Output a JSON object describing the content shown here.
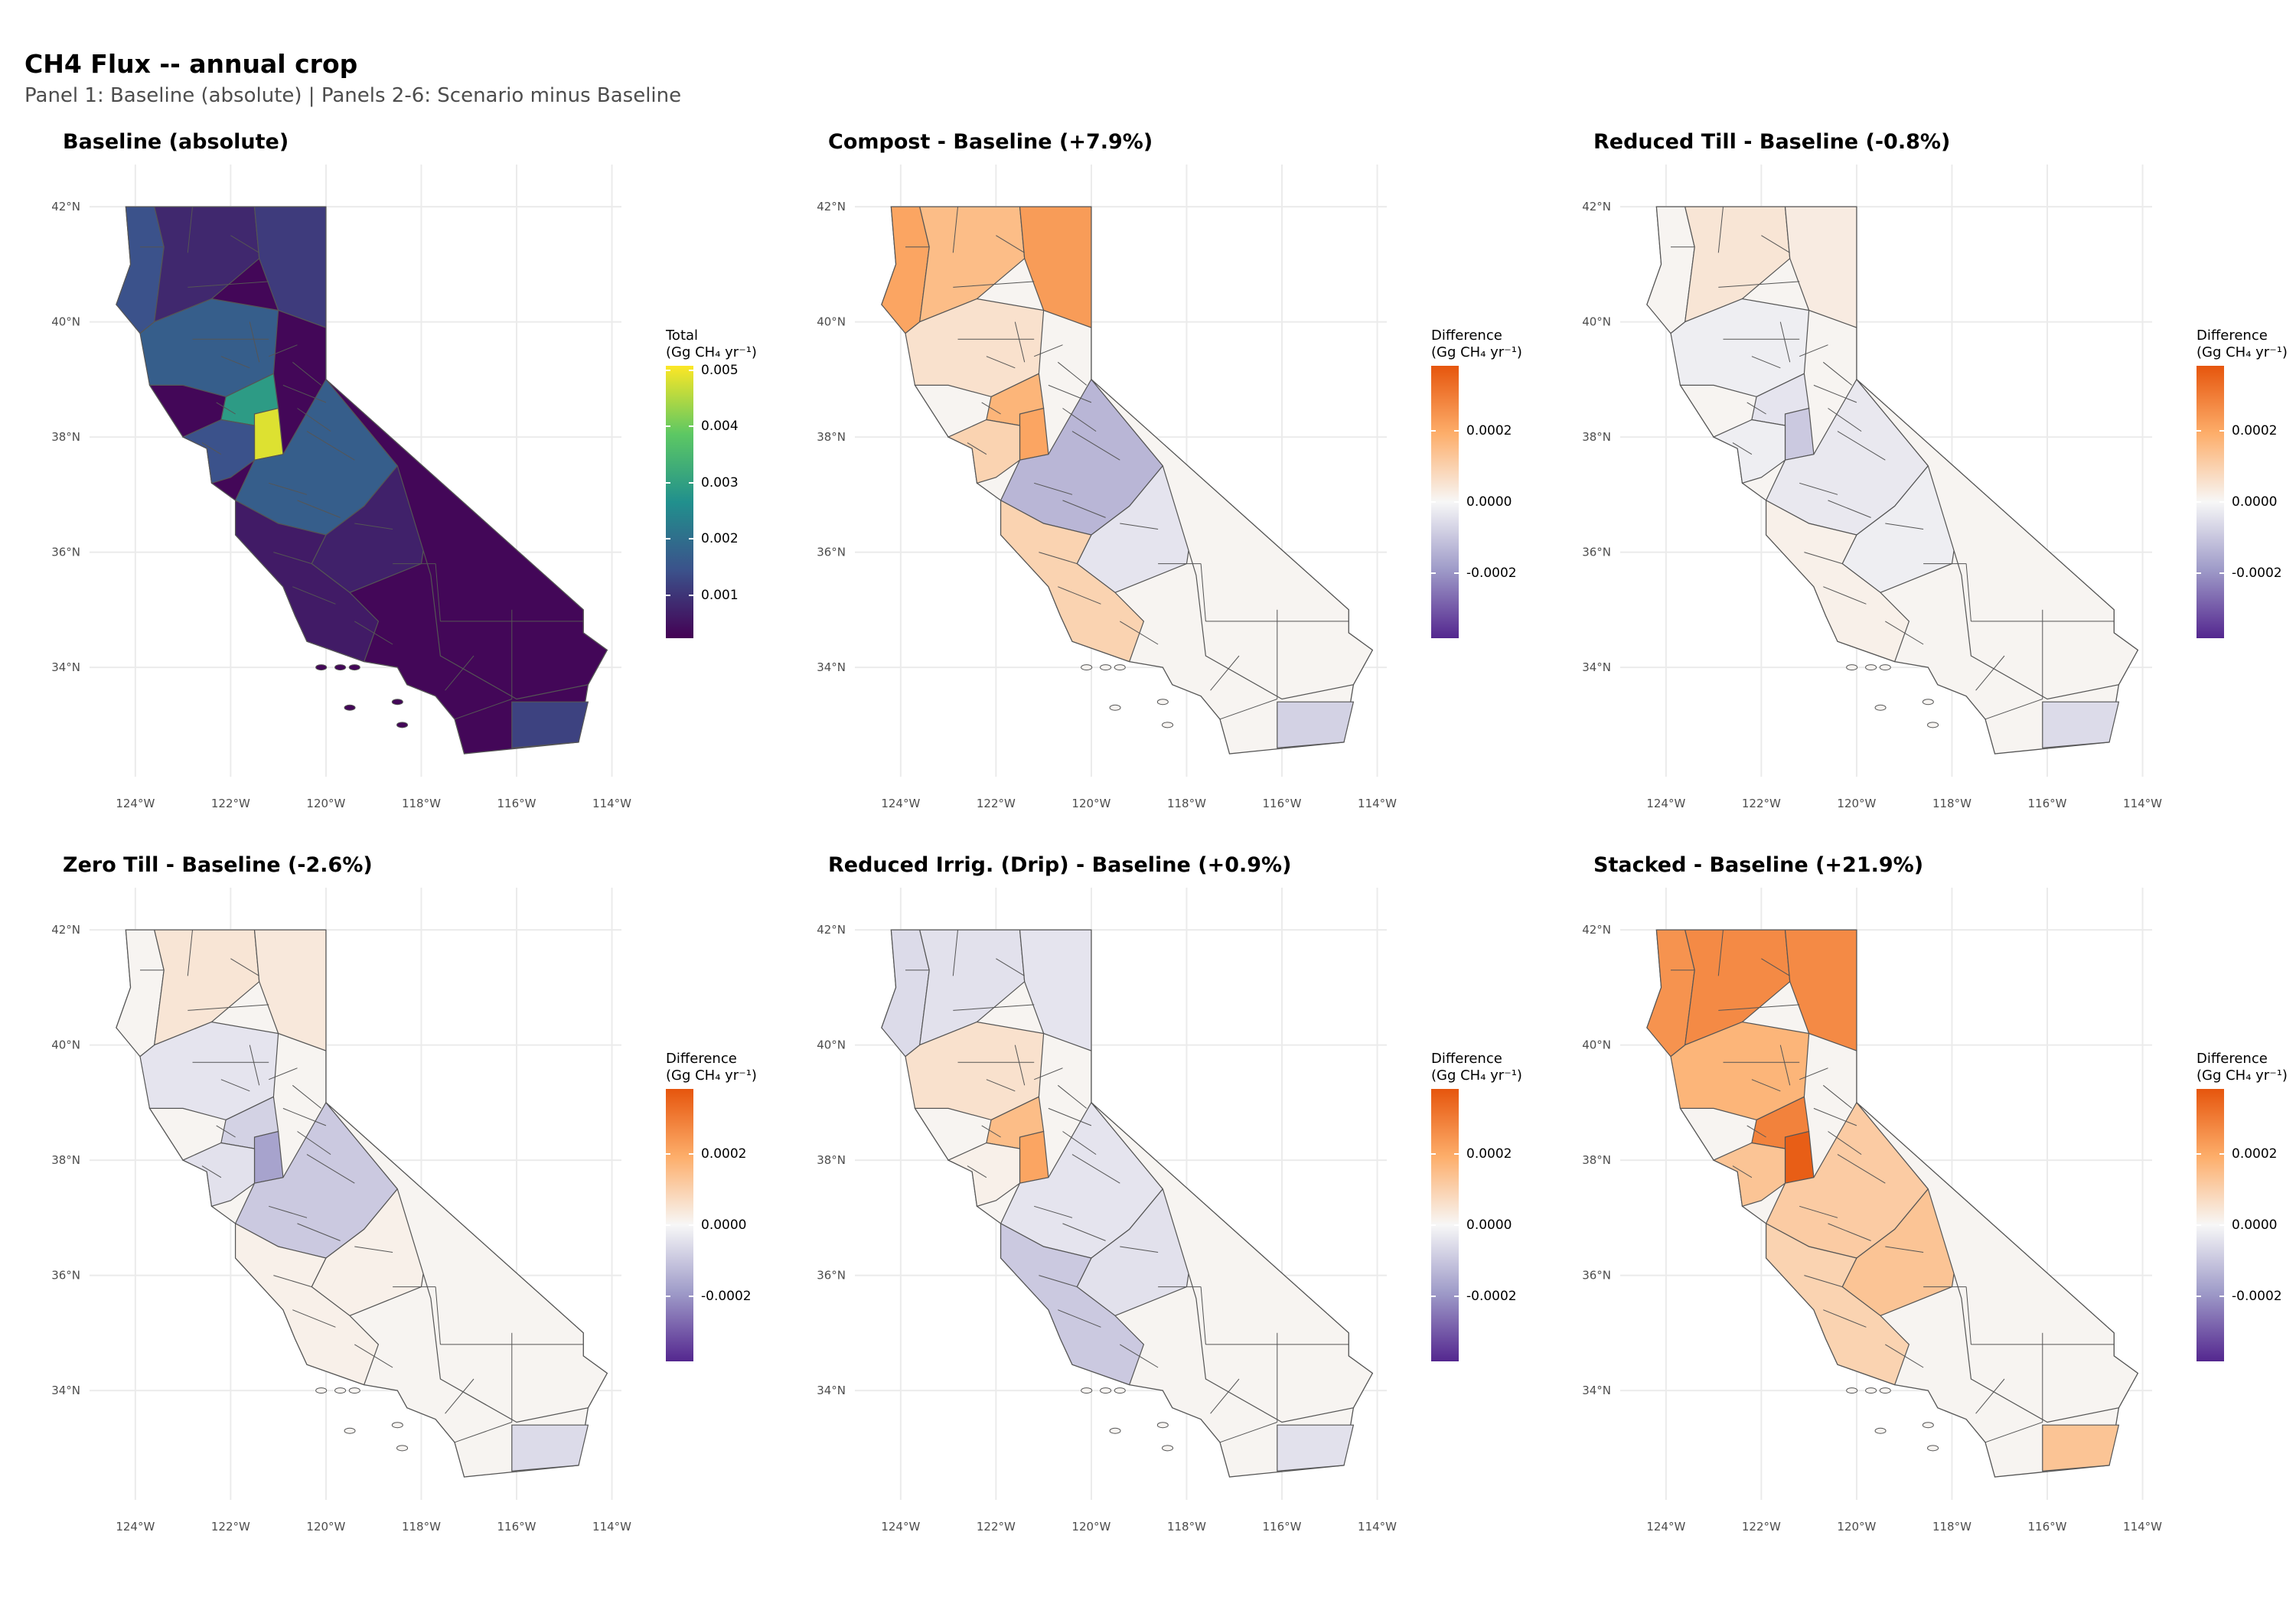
{
  "figure": {
    "title": "CH4 Flux -- annual crop",
    "subtitle": "Panel 1: Baseline (absolute) | Panels 2-6: Scenario minus Baseline"
  },
  "axes": {
    "lon_ticks": [
      "124°W",
      "122°W",
      "120°W",
      "118°W",
      "116°W",
      "114°W"
    ],
    "lat_ticks": [
      "42°N",
      "40°N",
      "38°N",
      "36°N",
      "34°N"
    ]
  },
  "colors": {
    "viridis": [
      "#440154",
      "#3b528b",
      "#21908d",
      "#5dc863",
      "#fde725"
    ],
    "diverging": [
      "#54278f",
      "#9e9ac8",
      "#f7f7f7",
      "#fdae6b",
      "#e6550d"
    ],
    "border": "#555555",
    "grid": "#ebebeb"
  },
  "panels": [
    {
      "title": "Baseline (absolute)",
      "legend_title": [
        "Total",
        "(Gg CH₄ yr⁻¹)"
      ],
      "legend_ticks": [
        "0.005",
        "0.004",
        "0.003",
        "0.002",
        "0.001"
      ],
      "scale": "viridis",
      "default_level": 0.02,
      "regions": {
        "nw": 0.25,
        "north": 0.12,
        "ne": 0.18,
        "sac": 0.3,
        "yolo": 0.55,
        "sj": 0.95,
        "delta": 0.25,
        "central": 0.3,
        "tulare": 0.1,
        "coast": 0.08,
        "se": 0.02,
        "imperial": 0.2
      }
    },
    {
      "title": "Compost - Baseline (+7.9%)",
      "legend_title": [
        "Difference",
        "(Gg CH₄ yr⁻¹)"
      ],
      "legend_ticks": [
        "0.0002",
        "0.0000",
        "-0.0002"
      ],
      "scale": "diverging",
      "default_level": 0.02,
      "regions": {
        "nw": 0.55,
        "north": 0.4,
        "ne": 0.6,
        "sac": 0.15,
        "yolo": 0.45,
        "sj": 0.55,
        "delta": 0.25,
        "central": -0.35,
        "tulare": -0.1,
        "coast": 0.25,
        "se": 0.02,
        "imperial": -0.2
      }
    },
    {
      "title": "Reduced Till - Baseline (-0.8%)",
      "legend_title": [
        "Difference",
        "(Gg CH₄ yr⁻¹)"
      ],
      "legend_ticks": [
        "0.0002",
        "0.0000",
        "-0.0002"
      ],
      "scale": "diverging",
      "default_level": 0.02,
      "regions": {
        "nw": 0.02,
        "north": 0.12,
        "ne": 0.08,
        "sac": -0.05,
        "yolo": -0.1,
        "sj": -0.25,
        "delta": -0.05,
        "central": -0.08,
        "tulare": -0.05,
        "coast": 0.05,
        "se": 0.02,
        "imperial": -0.15
      }
    },
    {
      "title": "Zero Till - Baseline (-2.6%)",
      "legend_title": [
        "Difference",
        "(Gg CH₄ yr⁻¹)"
      ],
      "legend_ticks": [
        "0.0002",
        "0.0000",
        "-0.0002"
      ],
      "scale": "diverging",
      "default_level": 0.02,
      "regions": {
        "nw": 0.02,
        "north": 0.12,
        "ne": 0.1,
        "sac": -0.1,
        "yolo": -0.2,
        "sj": -0.45,
        "delta": -0.12,
        "central": -0.25,
        "tulare": 0.05,
        "coast": 0.05,
        "se": 0.02,
        "imperial": -0.15
      }
    },
    {
      "title": "Reduced Irrig. (Drip) - Baseline (+0.9%)",
      "legend_title": [
        "Difference",
        "(Gg CH₄ yr⁻¹)"
      ],
      "legend_ticks": [
        "0.0002",
        "0.0000",
        "-0.0002"
      ],
      "scale": "diverging",
      "default_level": 0.02,
      "regions": {
        "nw": -0.15,
        "north": -0.12,
        "ne": -0.1,
        "sac": 0.15,
        "yolo": 0.4,
        "sj": 0.55,
        "delta": 0.05,
        "central": -0.1,
        "tulare": -0.12,
        "coast": -0.25,
        "se": 0.02,
        "imperial": -0.12
      }
    },
    {
      "title": "Stacked - Baseline (+21.9%)",
      "legend_title": [
        "Difference",
        "(Gg CH₄ yr⁻¹)"
      ],
      "legend_ticks": [
        "0.0002",
        "0.0000",
        "-0.0002"
      ],
      "scale": "diverging",
      "default_level": 0.02,
      "regions": {
        "nw": 0.65,
        "north": 0.7,
        "ne": 0.7,
        "sac": 0.45,
        "yolo": 0.75,
        "sj": 0.95,
        "delta": 0.35,
        "central": 0.3,
        "tulare": 0.35,
        "coast": 0.25,
        "se": 0.02,
        "imperial": 0.35
      }
    }
  ]
}
